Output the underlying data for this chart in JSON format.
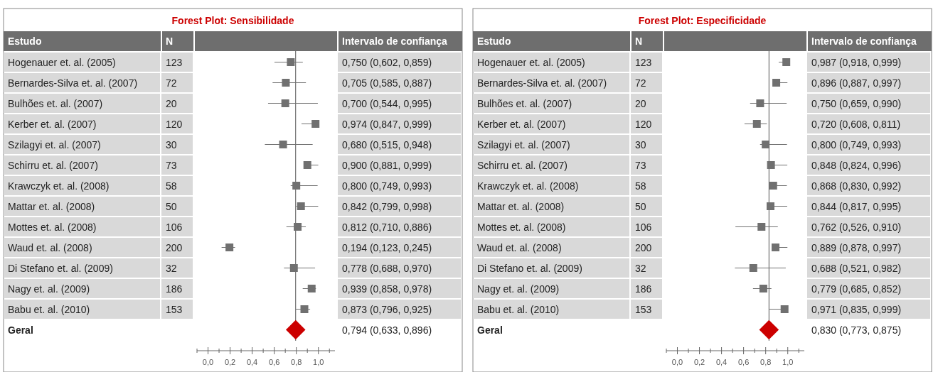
{
  "chart_data": [
    {
      "type": "scatter",
      "title": "Forest Plot: Sensibilidade",
      "orientation": "horizontal",
      "categories": [
        "Hogenauer et. al. (2005)",
        "Bernardes-Silva et. al. (2007)",
        "Bulhões et. al. (2007)",
        "Kerber et. al. (2007)",
        "Szilagyi et. al. (2007)",
        "Schirru et. al. (2007)",
        "Krawczyk et. al. (2008)",
        "Mattar et. al. (2008)",
        "Mottes et. al. (2008)",
        "Waud et. al. (2008)",
        "Di Stefano et. al. (2009)",
        "Nagy et. al. (2009)",
        "Babu et. al. (2010)",
        "Geral"
      ],
      "xlim": [
        -0.1,
        1.15
      ],
      "xticks": [
        {
          "value": -0.1,
          "label": null
        },
        {
          "value": 0,
          "label": "0,0"
        },
        {
          "value": 0.1,
          "label": null
        },
        {
          "value": 0.2,
          "label": "0,2"
        },
        {
          "value": 0.3,
          "label": null
        },
        {
          "value": 0.4,
          "label": "0,4"
        },
        {
          "value": 0.5,
          "label": null
        },
        {
          "value": 0.6,
          "label": "0,6"
        },
        {
          "value": 0.7,
          "label": null
        },
        {
          "value": 0.8,
          "label": "0,8"
        },
        {
          "value": 0.9,
          "label": null
        },
        {
          "value": 1.0,
          "label": "1,0"
        },
        {
          "value": 1.1,
          "label": null
        }
      ],
      "ref_lines": [
        {
          "axis": "x",
          "value": 0.794,
          "color": "#555555"
        }
      ],
      "annotations": [
        "Estudo",
        "N",
        "Intervalo de confiança",
        "123",
        "72",
        "20",
        "120",
        "30",
        "73",
        "58",
        "50",
        "106",
        "200",
        "32",
        "186",
        "153",
        "0,794 (0,633, 0,896)"
      ],
      "series": [
        {
          "color": "#707070",
          "marker": "square",
          "values": [
            0.75,
            0.705,
            0.7,
            0.974,
            0.68,
            0.9,
            0.8,
            0.842,
            0.812,
            0.194,
            0.778,
            0.939,
            0.873,
            null
          ],
          "errors": [
            [
              0.602,
              0.859
            ],
            [
              0.585,
              0.887
            ],
            [
              0.544,
              0.995
            ],
            [
              0.847,
              0.999
            ],
            [
              0.515,
              0.948
            ],
            [
              0.881,
              0.999
            ],
            [
              0.749,
              0.993
            ],
            [
              0.799,
              0.998
            ],
            [
              0.71,
              0.886
            ],
            [
              0.123,
              0.245
            ],
            [
              0.688,
              0.97
            ],
            [
              0.858,
              0.978
            ],
            [
              0.796,
              0.925
            ],
            null
          ],
          "value_labels": [
            "0,750 (0,602, 0,859)",
            "0,705 (0,585, 0,887)",
            "0,700 (0,544, 0,995)",
            "0,974 (0,847, 0,999)",
            "0,680 (0,515, 0,948)",
            "0,900 (0,881, 0,999)",
            "0,800 (0,749, 0,993)",
            "0,842 (0,799, 0,998)",
            "0,812 (0,710, 0,886)",
            "0,194 (0,123, 0,245)",
            "0,778 (0,688, 0,970)",
            "0,939 (0,858, 0,978)",
            "0,873 (0,796, 0,925)",
            null
          ]
        },
        {
          "color": "#cc0000",
          "marker": "diamond",
          "values": [
            null,
            null,
            null,
            null,
            null,
            null,
            null,
            null,
            null,
            null,
            null,
            null,
            null,
            0.794
          ]
        }
      ]
    },
    {
      "type": "scatter",
      "title": "Forest Plot: Especificidade",
      "orientation": "horizontal",
      "categories": [
        "Hogenauer et. al. (2005)",
        "Bernardes-Silva et. al. (2007)",
        "Bulhões et. al. (2007)",
        "Kerber et. al. (2007)",
        "Szilagyi et. al. (2007)",
        "Schirru et. al. (2007)",
        "Krawczyk et. al. (2008)",
        "Mattar et. al. (2008)",
        "Mottes et. al. (2008)",
        "Waud et. al. (2008)",
        "Di Stefano et. al. (2009)",
        "Nagy et. al. (2009)",
        "Babu et. al. (2010)",
        "Geral"
      ],
      "xlim": [
        -0.1,
        1.15
      ],
      "xticks": [
        {
          "value": -0.1,
          "label": null
        },
        {
          "value": 0,
          "label": "0,0"
        },
        {
          "value": 0.1,
          "label": null
        },
        {
          "value": 0.2,
          "label": "0,2"
        },
        {
          "value": 0.3,
          "label": null
        },
        {
          "value": 0.4,
          "label": "0,4"
        },
        {
          "value": 0.5,
          "label": null
        },
        {
          "value": 0.6,
          "label": "0,6"
        },
        {
          "value": 0.7,
          "label": null
        },
        {
          "value": 0.8,
          "label": "0,8"
        },
        {
          "value": 0.9,
          "label": null
        },
        {
          "value": 1.0,
          "label": "1,0"
        },
        {
          "value": 1.1,
          "label": null
        }
      ],
      "ref_lines": [
        {
          "axis": "x",
          "value": 0.83,
          "color": "#555555"
        }
      ],
      "annotations": [
        "Estudo",
        "N",
        "Intervalo de confiança",
        "123",
        "72",
        "20",
        "120",
        "30",
        "73",
        "58",
        "50",
        "106",
        "200",
        "32",
        "186",
        "153",
        "0,830 (0,773, 0,875)"
      ],
      "series": [
        {
          "color": "#707070",
          "marker": "square",
          "values": [
            0.987,
            0.896,
            0.75,
            0.72,
            0.8,
            0.848,
            0.868,
            0.844,
            0.762,
            0.889,
            0.688,
            0.779,
            0.971,
            null
          ],
          "errors": [
            [
              0.918,
              0.987
            ],
            [
              0.887,
              0.997
            ],
            [
              0.659,
              0.99
            ],
            [
              0.608,
              0.811
            ],
            [
              0.749,
              0.993
            ],
            [
              0.824,
              0.996
            ],
            [
              0.83,
              0.992
            ],
            [
              0.817,
              0.995
            ],
            [
              0.526,
              0.91
            ],
            [
              0.889,
              0.997
            ],
            [
              0.521,
              0.982
            ],
            [
              0.685,
              0.852
            ],
            [
              0.835,
              0.999
            ],
            null
          ],
          "value_labels": [
            "0,987 (0,918, 0,999)",
            "0,896 (0,887, 0,997)",
            "0,750 (0,659, 0,990)",
            "0,720 (0,608, 0,811)",
            "0,800 (0,749, 0,993)",
            "0,848 (0,824, 0,996)",
            "0,868 (0,830, 0,992)",
            "0,844 (0,817, 0,995)",
            "0,762 (0,526, 0,910)",
            "0,889 (0,878, 0,997)",
            "0,688 (0,521, 0,982)",
            "0,779 (0,685, 0,852)",
            "0,971 (0,835, 0,999)",
            null
          ]
        },
        {
          "color": "#cc0000",
          "marker": "diamond",
          "values": [
            null,
            null,
            null,
            null,
            null,
            null,
            null,
            null,
            null,
            null,
            null,
            null,
            null,
            0.83
          ]
        }
      ]
    }
  ]
}
